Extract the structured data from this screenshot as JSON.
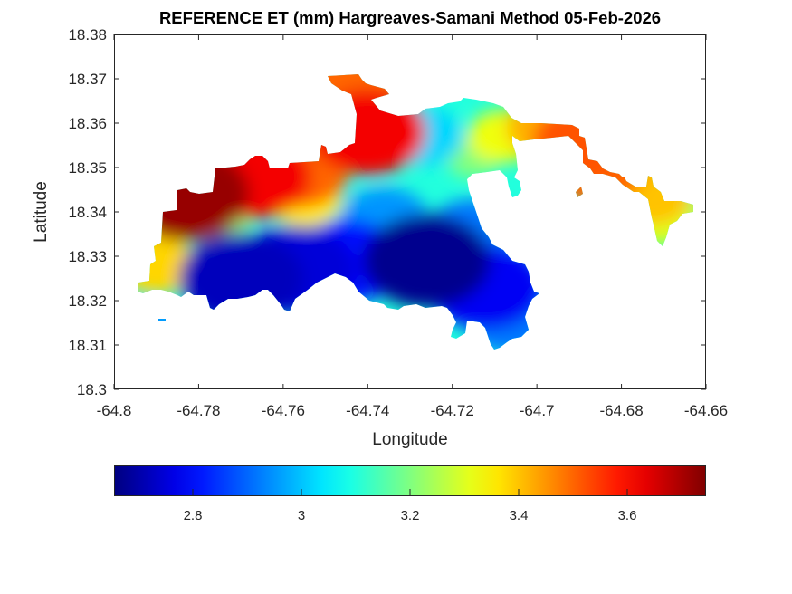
{
  "chart_data": {
    "type": "heatmap",
    "subtype": "filled-contour-map",
    "title": "REFERENCE ET (mm) Hargreaves-Samani Method  05-Feb-2026",
    "xlabel": "Longitude",
    "ylabel": "Latitude",
    "xlim": [
      -64.8,
      -64.66
    ],
    "ylim": [
      18.3,
      18.38
    ],
    "xticks": [
      -64.8,
      -64.78,
      -64.76,
      -64.74,
      -64.72,
      -64.7,
      -64.68,
      -64.66
    ],
    "xtick_labels": [
      "-64.8",
      "-64.78",
      "-64.76",
      "-64.74",
      "-64.72",
      "-64.7",
      "-64.68",
      "-64.66"
    ],
    "yticks": [
      18.3,
      18.31,
      18.32,
      18.33,
      18.34,
      18.35,
      18.36,
      18.37,
      18.38
    ],
    "ytick_labels": [
      "18.3",
      "18.31",
      "18.32",
      "18.33",
      "18.34",
      "18.35",
      "18.36",
      "18.37",
      "18.38"
    ],
    "grid": false,
    "colormap": "jet",
    "colorbar": {
      "location": "bottom",
      "range": [
        2.655,
        3.745
      ],
      "ticks": [
        2.8,
        3.0,
        3.2,
        3.4,
        3.6
      ],
      "tick_labels": [
        "2.8",
        "3",
        "3.2",
        "3.4",
        "3.6"
      ]
    },
    "value_samples": [
      {
        "lon": -64.783,
        "lat": 18.344,
        "value": 3.72
      },
      {
        "lon": -64.767,
        "lat": 18.348,
        "value": 3.62
      },
      {
        "lon": -64.74,
        "lat": 18.358,
        "value": 3.62
      },
      {
        "lon": -64.744,
        "lat": 18.369,
        "value": 3.5
      },
      {
        "lon": -64.756,
        "lat": 18.349,
        "value": 3.5
      },
      {
        "lon": -64.755,
        "lat": 18.343,
        "value": 3.35
      },
      {
        "lon": -64.79,
        "lat": 18.337,
        "value": 3.32
      },
      {
        "lon": -64.79,
        "lat": 18.328,
        "value": 3.38
      },
      {
        "lon": -64.775,
        "lat": 18.337,
        "value": 3.22
      },
      {
        "lon": -64.727,
        "lat": 18.357,
        "value": 3.02
      },
      {
        "lon": -64.715,
        "lat": 18.352,
        "value": 3.2
      },
      {
        "lon": -64.708,
        "lat": 18.357,
        "value": 3.32
      },
      {
        "lon": -64.697,
        "lat": 18.359,
        "value": 3.42
      },
      {
        "lon": -64.689,
        "lat": 18.356,
        "value": 3.52
      },
      {
        "lon": -64.686,
        "lat": 18.35,
        "value": 3.5
      },
      {
        "lon": -64.673,
        "lat": 18.344,
        "value": 3.4
      },
      {
        "lon": -64.671,
        "lat": 18.338,
        "value": 3.3
      },
      {
        "lon": -64.665,
        "lat": 18.341,
        "value": 3.22
      },
      {
        "lon": -64.77,
        "lat": 18.325,
        "value": 2.72
      },
      {
        "lon": -64.757,
        "lat": 18.327,
        "value": 2.75
      },
      {
        "lon": -64.745,
        "lat": 18.329,
        "value": 2.8
      },
      {
        "lon": -64.726,
        "lat": 18.329,
        "value": 2.67
      },
      {
        "lon": -64.712,
        "lat": 18.323,
        "value": 2.78
      },
      {
        "lon": -64.706,
        "lat": 18.316,
        "value": 2.92
      },
      {
        "lon": -64.736,
        "lat": 18.338,
        "value": 2.95
      },
      {
        "lon": -64.715,
        "lat": 18.335,
        "value": 2.92
      },
      {
        "lon": -64.793,
        "lat": 18.312,
        "value": 2.95
      }
    ]
  }
}
